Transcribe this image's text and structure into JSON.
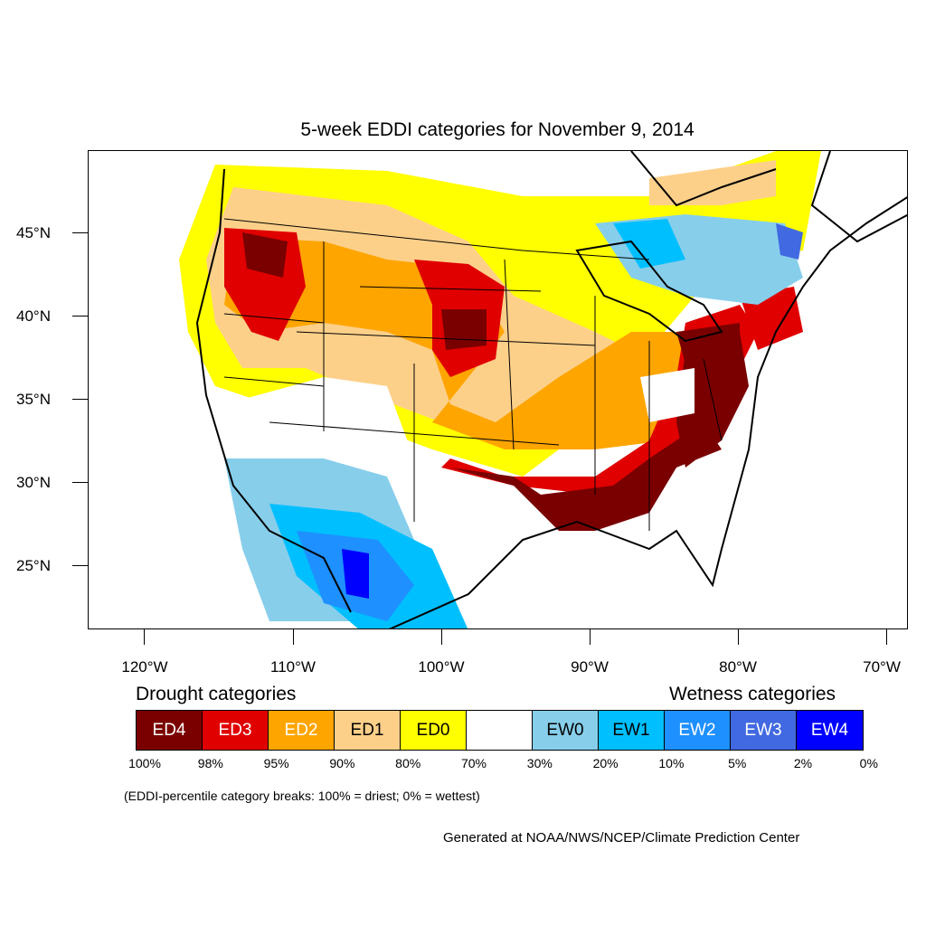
{
  "title": "5-week EDDI categories for November 9, 2014",
  "latitude_labels": [
    "45°N",
    "40°N",
    "35°N",
    "30°N",
    "25°N"
  ],
  "longitude_labels": [
    "120°W",
    "110°W",
    "100°W",
    "90°W",
    "80°W",
    "70°W"
  ],
  "legend": {
    "drought_heading": "Drought categories",
    "wetness_heading": "Wetness categories",
    "categories": [
      {
        "label": "ED4",
        "color": "#7a0000",
        "text_color": "#ffffff"
      },
      {
        "label": "ED3",
        "color": "#e00000",
        "text_color": "#ffffff"
      },
      {
        "label": "ED2",
        "color": "#ffa500",
        "text_color": "#ffffff"
      },
      {
        "label": "ED1",
        "color": "#fdd08a",
        "text_color": "#000000"
      },
      {
        "label": "ED0",
        "color": "#ffff00",
        "text_color": "#000000"
      },
      {
        "label": "",
        "color": "#ffffff",
        "text_color": "#000000"
      },
      {
        "label": "EW0",
        "color": "#87ceeb",
        "text_color": "#000000"
      },
      {
        "label": "EW1",
        "color": "#00bfff",
        "text_color": "#000000"
      },
      {
        "label": "EW2",
        "color": "#1e90ff",
        "text_color": "#ffffff"
      },
      {
        "label": "EW3",
        "color": "#4169e1",
        "text_color": "#ffffff"
      },
      {
        "label": "EW4",
        "color": "#0000ff",
        "text_color": "#ffffff"
      }
    ],
    "percentiles": [
      "100%",
      "98%",
      "95%",
      "90%",
      "80%",
      "70%",
      "30%",
      "20%",
      "10%",
      "5%",
      "2%",
      "0%"
    ]
  },
  "note": "(EDDI-percentile category breaks: 100% = driest; 0% = wettest)",
  "credit": "Generated at NOAA/NWS/NCEP/Climate Prediction Center"
}
